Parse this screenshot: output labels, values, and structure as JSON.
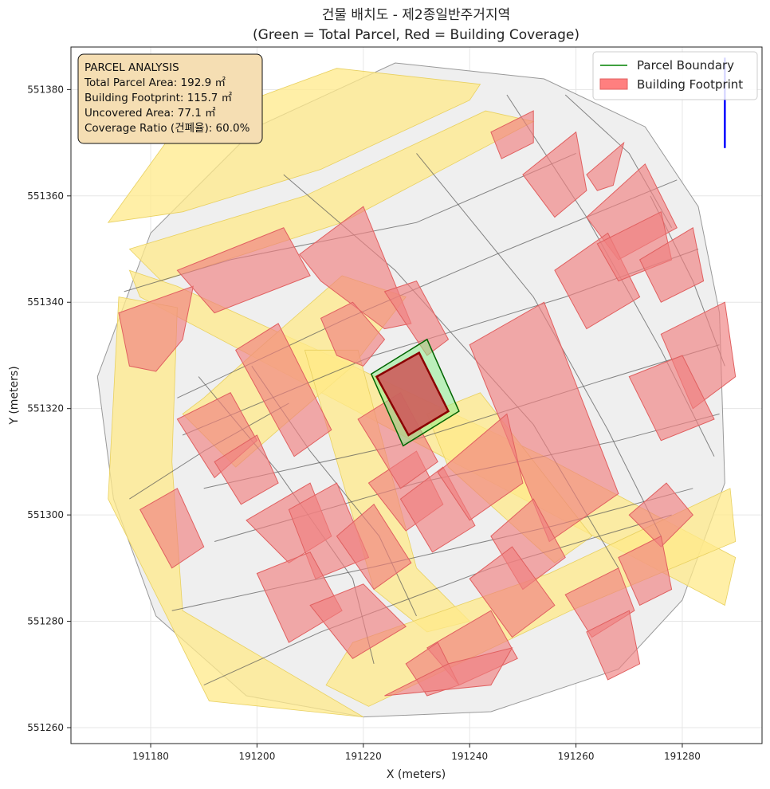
{
  "chart_data": {
    "type": "map-plot",
    "title": "건물 배치도 - 제2종일반주거지역",
    "subtitle": "(Green = Total Parcel, Red = Building Coverage)",
    "xlabel": "X (meters)",
    "ylabel": "Y (meters)",
    "xlim": [
      191165,
      191295
    ],
    "ylim": [
      551257,
      551388
    ],
    "x_ticks": [
      191180,
      191200,
      191220,
      191240,
      191260,
      191280
    ],
    "y_ticks": [
      551260,
      551280,
      551300,
      551320,
      551340,
      551360,
      551380
    ],
    "grid": true,
    "legend_position": "top-right",
    "legend": [
      {
        "label": "Parcel Boundary",
        "kind": "line",
        "color": "#008000"
      },
      {
        "label": "Building Footprint",
        "kind": "patch",
        "color": "#ff7f7f"
      }
    ],
    "colors": {
      "context_parcel": "#efefef",
      "context_edge": "#555555",
      "road": "#ffe98a",
      "context_building": "#f08080",
      "target_parcel": "#90ee90",
      "target_edge": "#006400",
      "target_building": "#cd5c5c",
      "target_building_edge": "#8b0000",
      "north_arrow": "#0000ff"
    },
    "info_box": {
      "header": "PARCEL ANALYSIS",
      "lines": [
        "Total Parcel Area: 192.9 ㎡",
        "Building Footprint: 115.7 ㎡",
        "Uncovered Area: 77.1 ㎡",
        "Coverage Ratio (건폐율): 60.0%"
      ]
    },
    "metrics": {
      "total_parcel_area_m2": 192.9,
      "building_footprint_m2": 115.7,
      "uncovered_area_m2": 77.1,
      "coverage_ratio_pct": 60.0
    },
    "target_parcel": [
      [
        191221.5,
        551326.5
      ],
      [
        191232,
        551333
      ],
      [
        191238,
        551319.5
      ],
      [
        191227.5,
        551313
      ]
    ],
    "target_building": [
      [
        191222.5,
        551326
      ],
      [
        191230.5,
        551330.5
      ],
      [
        191236,
        551319.5
      ],
      [
        191228.5,
        551315
      ]
    ],
    "context_area": [
      [
        191170,
        551326
      ],
      [
        191180,
        551353
      ],
      [
        191200,
        551373
      ],
      [
        191226,
        551385
      ],
      [
        191254,
        551382
      ],
      [
        191273,
        551373
      ],
      [
        191283,
        551358
      ],
      [
        191287,
        551338
      ],
      [
        191288,
        551306
      ],
      [
        191280,
        551284
      ],
      [
        191268,
        551271
      ],
      [
        191244,
        551263
      ],
      [
        191220,
        551262
      ],
      [
        191198,
        551266
      ],
      [
        191181,
        551281
      ],
      [
        191173,
        551303
      ]
    ],
    "road_polygons": [
      [
        [
          191172,
          551355
        ],
        [
          191185,
          551373
        ],
        [
          191215,
          551384
        ],
        [
          191242,
          551381
        ],
        [
          191240,
          551378
        ],
        [
          191212,
          551365
        ],
        [
          191186,
          551357
        ]
      ],
      [
        [
          191176,
          551350
        ],
        [
          191209,
          551360
        ],
        [
          191243,
          551376
        ],
        [
          191252,
          551374
        ],
        [
          191216,
          551355
        ],
        [
          191182,
          551344
        ]
      ],
      [
        [
          191176,
          551346
        ],
        [
          191185,
          551343
        ],
        [
          191218,
          551328
        ],
        [
          191254,
          551311
        ],
        [
          191290,
          551292
        ],
        [
          191288,
          551283
        ],
        [
          191252,
          551302
        ],
        [
          191214,
          551322
        ],
        [
          191178,
          551341
        ]
      ],
      [
        [
          191174,
          551341
        ],
        [
          191172,
          551303
        ],
        [
          191191,
          551265
        ],
        [
          191220,
          551262
        ],
        [
          191186,
          551282
        ],
        [
          191184,
          551310
        ],
        [
          191185,
          551339
        ]
      ],
      [
        [
          191186,
          551319
        ],
        [
          191190,
          551322
        ],
        [
          191200,
          551331
        ],
        [
          191216,
          551345
        ],
        [
          191228,
          551341
        ],
        [
          191218,
          551328
        ],
        [
          191204,
          551316
        ],
        [
          191196,
          551309
        ]
      ],
      [
        [
          191209,
          551331
        ],
        [
          191219,
          551331
        ],
        [
          191230,
          551290
        ],
        [
          191240,
          551280
        ],
        [
          191232,
          551278
        ],
        [
          191222,
          551286
        ]
      ],
      [
        [
          191213,
          551268
        ],
        [
          191221,
          551264
        ],
        [
          191259,
          551282
        ],
        [
          191290,
          551295
        ],
        [
          191289,
          551305
        ],
        [
          191255,
          551289
        ],
        [
          191218,
          551276
        ]
      ],
      [
        [
          191232,
          551319
        ],
        [
          191242,
          551323
        ],
        [
          191263,
          551296
        ],
        [
          191256,
          551291
        ],
        [
          191236,
          551309
        ]
      ]
    ],
    "parcel_lines": [
      [
        [
          191175,
          551342
        ],
        [
          191195,
          551348
        ],
        [
          191230,
          551355
        ],
        [
          191260,
          551368
        ]
      ],
      [
        [
          191185,
          551322
        ],
        [
          191217,
          551337
        ],
        [
          191245,
          551349
        ],
        [
          191279,
          551363
        ]
      ],
      [
        [
          191186,
          551315
        ],
        [
          191222,
          551330
        ],
        [
          191258,
          551341
        ],
        [
          191283,
          551350
        ]
      ],
      [
        [
          191190,
          551305
        ],
        [
          191226,
          551313
        ],
        [
          191264,
          551325
        ],
        [
          191287,
          551332
        ]
      ],
      [
        [
          191192,
          551295
        ],
        [
          191230,
          551306
        ],
        [
          191268,
          551314
        ],
        [
          191287,
          551319
        ]
      ],
      [
        [
          191184,
          551282
        ],
        [
          191221,
          551290
        ],
        [
          191256,
          551298
        ],
        [
          191282,
          551305
        ]
      ],
      [
        [
          191190,
          551268
        ],
        [
          191212,
          551278
        ],
        [
          191244,
          551290
        ],
        [
          191278,
          551300
        ]
      ],
      [
        [
          191205,
          551364
        ],
        [
          191226,
          551346
        ],
        [
          191252,
          551317
        ],
        [
          191268,
          551290
        ]
      ],
      [
        [
          191230,
          551368
        ],
        [
          191252,
          551341
        ],
        [
          191266,
          551316
        ],
        [
          191276,
          551296
        ]
      ],
      [
        [
          191247,
          551379
        ],
        [
          191262,
          551356
        ],
        [
          191276,
          551331
        ],
        [
          191286,
          551311
        ]
      ],
      [
        [
          191189,
          551326
        ],
        [
          191204,
          551308
        ],
        [
          191218,
          551288
        ],
        [
          191222,
          551272
        ]
      ],
      [
        [
          191199,
          551328
        ],
        [
          191210,
          551312
        ],
        [
          191223,
          551296
        ],
        [
          191230,
          551281
        ]
      ],
      [
        [
          191176,
          551303
        ],
        [
          191190,
          551312
        ],
        [
          191206,
          551321
        ]
      ],
      [
        [
          191258,
          551379
        ],
        [
          191270,
          551368
        ],
        [
          191278,
          551354
        ]
      ],
      [
        [
          191274,
          551360
        ],
        [
          191282,
          551344
        ],
        [
          191288,
          551328
        ]
      ]
    ],
    "context_buildings": [
      [
        [
          191174,
          551338
        ],
        [
          191188,
          551343
        ],
        [
          191186,
          551333
        ],
        [
          191181,
          551327
        ],
        [
          191176,
          551328
        ]
      ],
      [
        [
          191185,
          551346
        ],
        [
          191205,
          551354
        ],
        [
          191210,
          551345
        ],
        [
          191192,
          551338
        ]
      ],
      [
        [
          191208,
          551349
        ],
        [
          191220,
          551358
        ],
        [
          191229,
          551336
        ],
        [
          191224,
          551335
        ],
        [
          191220,
          551338
        ],
        [
          191212,
          551344
        ]
      ],
      [
        [
          191212,
          551337
        ],
        [
          191218,
          551340
        ],
        [
          191224,
          551333
        ],
        [
          191220,
          551328
        ],
        [
          191215,
          551330
        ]
      ],
      [
        [
          191224,
          551342
        ],
        [
          191230,
          551344
        ],
        [
          191236,
          551333
        ],
        [
          191232,
          551330
        ]
      ],
      [
        [
          191244,
          551372
        ],
        [
          191252,
          551376
        ],
        [
          191252,
          551370
        ],
        [
          191246,
          551367
        ]
      ],
      [
        [
          191250,
          551364
        ],
        [
          191260,
          551372
        ],
        [
          191262,
          551361
        ],
        [
          191256,
          551356
        ]
      ],
      [
        [
          191262,
          551364
        ],
        [
          191269,
          551370
        ],
        [
          191267,
          551362
        ],
        [
          191264,
          551361
        ]
      ],
      [
        [
          191262,
          551356
        ],
        [
          191273,
          551366
        ],
        [
          191279,
          551354
        ],
        [
          191268,
          551348
        ]
      ],
      [
        [
          191256,
          551346
        ],
        [
          191266,
          551353
        ],
        [
          191272,
          551341
        ],
        [
          191262,
          551335
        ]
      ],
      [
        [
          191264,
          551351
        ],
        [
          191276,
          551357
        ],
        [
          191278,
          551348
        ],
        [
          191268,
          551344
        ]
      ],
      [
        [
          191272,
          551348
        ],
        [
          191282,
          551354
        ],
        [
          191284,
          551344
        ],
        [
          191276,
          551340
        ]
      ],
      [
        [
          191276,
          551334
        ],
        [
          191288,
          551340
        ],
        [
          191290,
          551326
        ],
        [
          191282,
          551320
        ]
      ],
      [
        [
          191270,
          551326
        ],
        [
          191280,
          551330
        ],
        [
          191286,
          551318
        ],
        [
          191276,
          551314
        ]
      ],
      [
        [
          191270,
          551300
        ],
        [
          191277,
          551306
        ],
        [
          191282,
          551300
        ],
        [
          191276,
          551294
        ]
      ],
      [
        [
          191240,
          551332
        ],
        [
          191254,
          551340
        ],
        [
          191268,
          551304
        ],
        [
          191255,
          551295
        ]
      ],
      [
        [
          191185,
          551318
        ],
        [
          191195,
          551323
        ],
        [
          191200,
          551314
        ],
        [
          191192,
          551307
        ]
      ],
      [
        [
          191196,
          551331
        ],
        [
          191204,
          551336
        ],
        [
          191214,
          551316
        ],
        [
          191207,
          551311
        ]
      ],
      [
        [
          191192,
          551310
        ],
        [
          191200,
          551315
        ],
        [
          191204,
          551306
        ],
        [
          191197,
          551302
        ]
      ],
      [
        [
          191178,
          551301
        ],
        [
          191185,
          551305
        ],
        [
          191190,
          551294
        ],
        [
          191184,
          551290
        ]
      ],
      [
        [
          191198,
          551299
        ],
        [
          191210,
          551306
        ],
        [
          191214,
          551296
        ],
        [
          191206,
          551291
        ]
      ],
      [
        [
          191206,
          551301
        ],
        [
          191215,
          551306
        ],
        [
          191221,
          551292
        ],
        [
          191211,
          551288
        ]
      ],
      [
        [
          191200,
          551289
        ],
        [
          191210,
          551293
        ],
        [
          191216,
          551282
        ],
        [
          191206,
          551276
        ]
      ],
      [
        [
          191210,
          551283
        ],
        [
          191220,
          551287
        ],
        [
          191228,
          551279
        ],
        [
          191218,
          551273
        ]
      ],
      [
        [
          191215,
          551296
        ],
        [
          191222,
          551302
        ],
        [
          191229,
          551291
        ],
        [
          191222,
          551286
        ]
      ],
      [
        [
          191221,
          551306
        ],
        [
          191230,
          551312
        ],
        [
          191235,
          551302
        ],
        [
          191228,
          551297
        ]
      ],
      [
        [
          191219,
          551318
        ],
        [
          191227,
          551323
        ],
        [
          191234,
          551310
        ],
        [
          191227,
          551305
        ]
      ],
      [
        [
          191227,
          551303
        ],
        [
          191235,
          551309
        ],
        [
          191241,
          551298
        ],
        [
          191233,
          551293
        ]
      ],
      [
        [
          191234,
          551308
        ],
        [
          191247,
          551319
        ],
        [
          191250,
          551306
        ],
        [
          191240,
          551299
        ]
      ],
      [
        [
          191244,
          551296
        ],
        [
          191252,
          551303
        ],
        [
          191258,
          551292
        ],
        [
          191250,
          551286
        ]
      ],
      [
        [
          191240,
          551288
        ],
        [
          191248,
          551294
        ],
        [
          191256,
          551283
        ],
        [
          191248,
          551277
        ]
      ],
      [
        [
          191232,
          551275
        ],
        [
          191244,
          551282
        ],
        [
          191249,
          551273
        ],
        [
          191238,
          551268
        ]
      ],
      [
        [
          191258,
          551285
        ],
        [
          191268,
          551290
        ],
        [
          191271,
          551282
        ],
        [
          191263,
          551277
        ]
      ],
      [
        [
          191262,
          551278
        ],
        [
          191270,
          551282
        ],
        [
          191272,
          551272
        ],
        [
          191266,
          551269
        ]
      ],
      [
        [
          191268,
          551292
        ],
        [
          191276,
          551296
        ],
        [
          191278,
          551286
        ],
        [
          191272,
          551283
        ]
      ],
      [
        [
          191228,
          551272
        ],
        [
          191234,
          551276
        ],
        [
          191238,
          551268
        ],
        [
          191232,
          551266
        ]
      ],
      [
        [
          191224,
          551266
        ],
        [
          191236,
          551272
        ],
        [
          191248,
          551275
        ],
        [
          191244,
          551268
        ]
      ]
    ],
    "north_arrow": {
      "x": 191288,
      "y_from": 551369,
      "y_to": 551386
    }
  }
}
